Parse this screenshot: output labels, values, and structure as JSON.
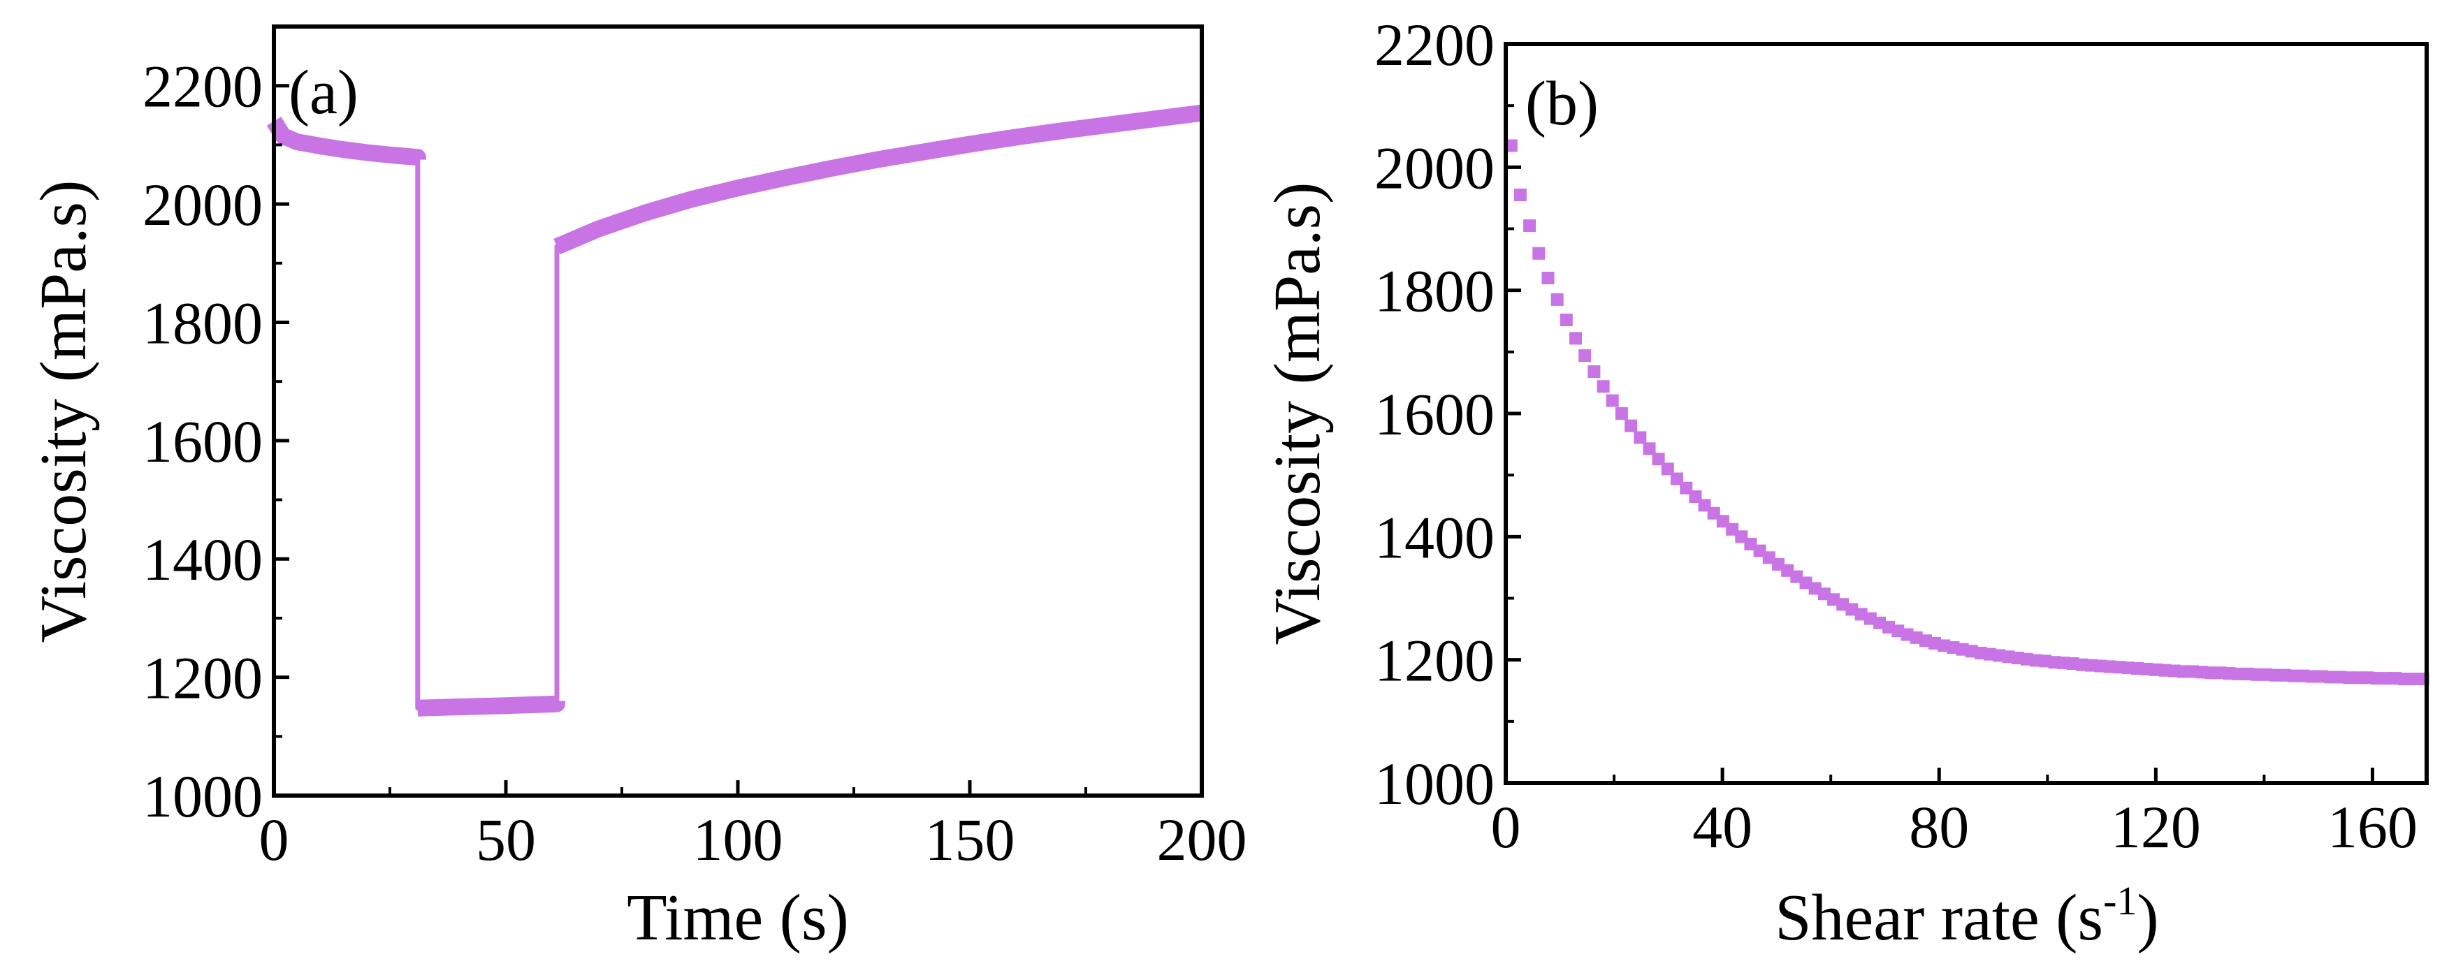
{
  "chart_data": [
    {
      "panel_label": "(a)",
      "type": "line",
      "xlabel": "Time (s)",
      "ylabel": "Viscosity (mPa.s)",
      "xlim": [
        0,
        200
      ],
      "ylim": [
        1000,
        2300
      ],
      "xticks": [
        0,
        50,
        100,
        150,
        200
      ],
      "yticks": [
        1000,
        1200,
        1400,
        1600,
        1800,
        2000,
        2200
      ],
      "color": "#c874e4",
      "series": [
        {
          "x": [
            0,
            2,
            5,
            10,
            15,
            20,
            25,
            31,
            31,
            31,
            40,
            50,
            61,
            61,
            61,
            70,
            80,
            90,
            100,
            110,
            120,
            130,
            140,
            150,
            160,
            170,
            180,
            190,
            200
          ],
          "values": [
            2140,
            2115,
            2105,
            2098,
            2092,
            2087,
            2083,
            2079,
            2075,
            1148,
            1150,
            1152,
            1155,
            1160,
            1928,
            1958,
            1985,
            2008,
            2027,
            2044,
            2060,
            2075,
            2088,
            2101,
            2113,
            2124,
            2134,
            2144,
            2154
          ]
        }
      ]
    },
    {
      "panel_label": "(b)",
      "type": "scatter",
      "xlabel": "Shear rate (s",
      "xlabel_sup": "-1",
      "xlabel_end": ")",
      "ylabel": "Viscosity (mPa.s)",
      "xlim": [
        0,
        170
      ],
      "ylim": [
        1000,
        2200
      ],
      "xticks": [
        0,
        40,
        80,
        120,
        160
      ],
      "yticks": [
        1000,
        1200,
        1400,
        1600,
        1800,
        2000,
        2200
      ],
      "color": "#c874e4",
      "series": [
        {
          "x": [
            1,
            2.7,
            4.4,
            6.1,
            7.8,
            9.5,
            11.2,
            12.9,
            14.6,
            16.3,
            18,
            19.7,
            21.4,
            23.1,
            24.8,
            26.5,
            28.2,
            29.9,
            31.6,
            33.3,
            35,
            36.7,
            38.4,
            40.1,
            41.8,
            43.5,
            45.2,
            46.9,
            48.6,
            50.3,
            52,
            53.7,
            55.4,
            57.1,
            58.8,
            60.5,
            62.2,
            63.9,
            65.6,
            67.3,
            69,
            70.7,
            72.4,
            74.1,
            75.8,
            77.5,
            79.2,
            80.9,
            82.6,
            84.3,
            86,
            87.7,
            89.4,
            91.1,
            92.8,
            94.5,
            96.2,
            97.9,
            99.6,
            101.3,
            103,
            104.7,
            106.4,
            108.1,
            109.8,
            111.5,
            113.2,
            114.9,
            116.6,
            118.3,
            120,
            121.7,
            123.4,
            125.1,
            126.8,
            128.5,
            130.2,
            131.9,
            133.6,
            135.3,
            137,
            138.7,
            140.4,
            142.1,
            143.8,
            145.5,
            147.2,
            148.9,
            150.6,
            152.3,
            154,
            155.7,
            157.4,
            159.1,
            160.8,
            162.5,
            164.2,
            165.9,
            167.6,
            169.3
          ],
          "values": [
            2035,
            1955,
            1905,
            1860,
            1820,
            1785,
            1752,
            1722,
            1694,
            1668,
            1644,
            1621,
            1600,
            1580,
            1561,
            1543,
            1526,
            1510,
            1494,
            1479,
            1465,
            1451,
            1438,
            1425,
            1412,
            1400,
            1388,
            1377,
            1366,
            1355,
            1345,
            1335,
            1325,
            1316,
            1307,
            1298,
            1290,
            1282,
            1274,
            1267,
            1260,
            1253,
            1247,
            1241,
            1236,
            1231,
            1227,
            1223,
            1220,
            1217,
            1214,
            1211,
            1209,
            1207,
            1205,
            1203,
            1201,
            1199,
            1198,
            1196,
            1195,
            1194,
            1192,
            1191,
            1190,
            1189,
            1188,
            1187,
            1186,
            1185,
            1184,
            1183,
            1182,
            1181,
            1181,
            1180,
            1179,
            1179,
            1178,
            1177,
            1177,
            1176,
            1176,
            1175,
            1175,
            1174,
            1174,
            1173,
            1173,
            1172,
            1172,
            1171,
            1171,
            1171,
            1170,
            1170,
            1170,
            1169,
            1169,
            1169
          ]
        }
      ]
    }
  ]
}
